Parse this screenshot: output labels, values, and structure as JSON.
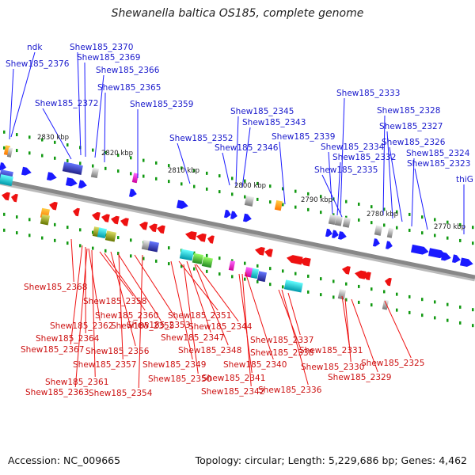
{
  "title": "Shewanella baltica OS185, complete genome",
  "footer": {
    "accession": "Accession: NC_009665",
    "summary": "Topology: circular; Length: 5,229,686 bp; Genes: 4,462"
  },
  "colors": {
    "forward": "#1a1aff",
    "reverse": "#ee1111",
    "backbone": "#888888",
    "tick_dot": "#119911"
  },
  "ticks": [
    "2830 kbp",
    "2820 kbp",
    "2810 kbp",
    "2800 kbp",
    "2790 kbp",
    "2780 kbp",
    "2770 kbp"
  ],
  "top_labels": [
    "ndk",
    "Shew185_2376",
    "Shew185_2370",
    "Shew185_2369",
    "Shew185_2366",
    "Shew185_2365",
    "Shew185_2372",
    "Shew185_2359",
    "Shew185_2345",
    "Shew185_2343",
    "Shew185_2352",
    "Shew185_2346",
    "Shew185_2339",
    "Shew185_2333",
    "Shew185_2328",
    "Shew185_2327",
    "Shew185_2326",
    "Shew185_2334",
    "Shew185_2332",
    "Shew185_2324",
    "Shew185_2323",
    "Shew185_2335",
    "thiG"
  ],
  "bottom_labels": [
    "Shew185_2368",
    "Shew185_2358",
    "Shew185_2360",
    "Shew185_2362",
    "Shew185_2355",
    "Shew185_2353",
    "Shew185_2351",
    "Shew185_2364",
    "Shew185_2367",
    "Shew185_2356",
    "Shew185_2344",
    "Shew185_2347",
    "Shew185_2348",
    "Shew185_2337",
    "Shew185_2338",
    "Shew185_2331",
    "Shew185_2357",
    "Shew185_2349",
    "Shew185_2340",
    "Shew185_2330",
    "Shew185_2325",
    "Shew185_2329",
    "Shew185_2341",
    "Shew185_2350",
    "Shew185_2361",
    "Shew185_2342",
    "Shew185_2336",
    "Shew185_2363",
    "Shew185_2354"
  ]
}
